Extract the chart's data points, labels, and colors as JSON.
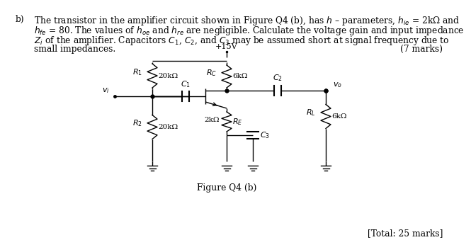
{
  "bg_color": "#ffffff",
  "text_color": "#000000",
  "fs_main": 8.8,
  "fs_label": 8.0,
  "fs_small": 7.5,
  "label_b": "b)",
  "line1": "The transistor in the amplifier circuit shown in Figure Q4 (b), has $h$ – parameters, $h_{ie}$ = 2kΩ and",
  "line2": "$h_{fe}$ = 80. The values of $h_{oe}$ and $h_{re}$ are negligible. Calculate the voltage gain and input impedance",
  "line3": "$Z_i$ of the amplifier. Capacitors $C_1$, $C_2$, and $C_3$ may be assumed short at signal frequency due to",
  "line4": "small impedances.",
  "marks": "(7 marks)",
  "figure_label": "Figure Q4 (b)",
  "total_marks": "[Total: 25 marks]",
  "vcc_label": "+15V",
  "R1_label": "$R_1$",
  "R1_val": "20kΩ",
  "R2_label": "$R_2$",
  "R2_val": "20kΩ",
  "RC_label": "$R_C$",
  "RC_val": "6kΩ",
  "RE_label": "$R_E$",
  "RE_val": "2kΩ",
  "RL_label": "$R_L$",
  "RL_val": "6kΩ",
  "C1_label": "$C_1$",
  "C2_label": "$C_2$",
  "C3_label": "$C_3$",
  "vi_label": "$v_i$",
  "vo_label": "$v_o$"
}
